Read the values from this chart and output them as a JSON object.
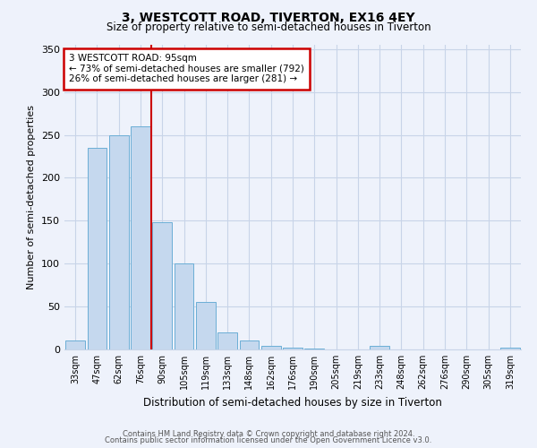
{
  "title": "3, WESTCOTT ROAD, TIVERTON, EX16 4EY",
  "subtitle": "Size of property relative to semi-detached houses in Tiverton",
  "xlabel": "Distribution of semi-detached houses by size in Tiverton",
  "ylabel": "Number of semi-detached properties",
  "bar_labels": [
    "33sqm",
    "47sqm",
    "62sqm",
    "76sqm",
    "90sqm",
    "105sqm",
    "119sqm",
    "133sqm",
    "148sqm",
    "162sqm",
    "176sqm",
    "190sqm",
    "205sqm",
    "219sqm",
    "233sqm",
    "248sqm",
    "262sqm",
    "276sqm",
    "290sqm",
    "305sqm",
    "319sqm"
  ],
  "bar_values": [
    10,
    235,
    250,
    260,
    148,
    100,
    55,
    20,
    10,
    4,
    2,
    1,
    0,
    0,
    4,
    0,
    0,
    0,
    0,
    0,
    2
  ],
  "bar_color": "#c5d8ee",
  "bar_edge_color": "#6baed6",
  "vline_x": 3.5,
  "vline_color": "#cc0000",
  "annotation_title": "3 WESTCOTT ROAD: 95sqm",
  "annotation_line1": "← 73% of semi-detached houses are smaller (792)",
  "annotation_line2": "26% of semi-detached houses are larger (281) →",
  "annotation_box_color": "#ffffff",
  "annotation_box_edge": "#cc0000",
  "ylim": [
    0,
    355
  ],
  "yticks": [
    0,
    50,
    100,
    150,
    200,
    250,
    300,
    350
  ],
  "footer1": "Contains HM Land Registry data © Crown copyright and database right 2024.",
  "footer2": "Contains public sector information licensed under the Open Government Licence v3.0.",
  "background_color": "#eef2fb",
  "grid_color": "#c8d4e8"
}
